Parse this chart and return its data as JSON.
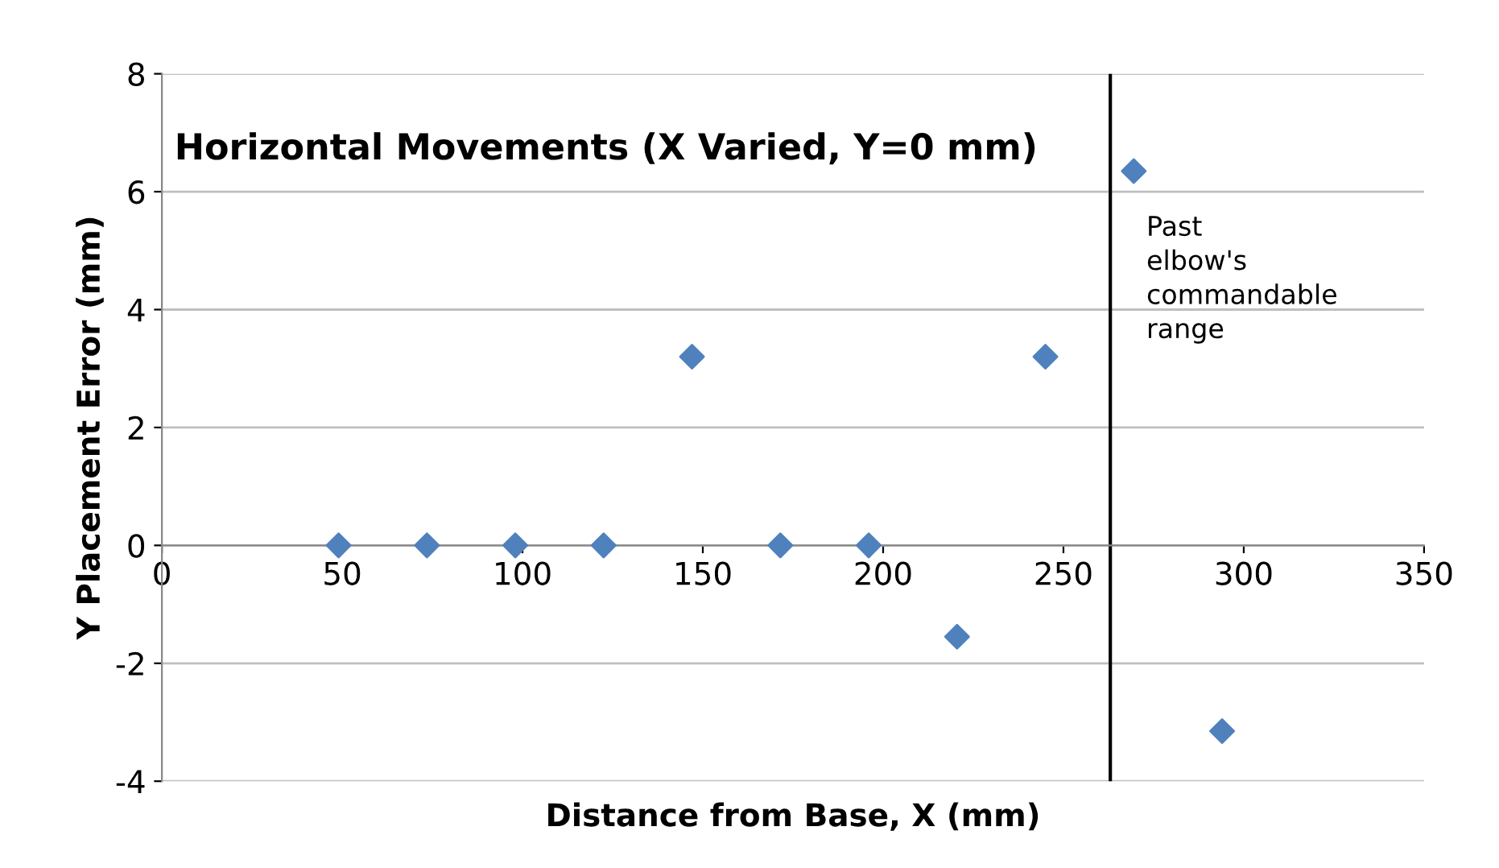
{
  "chart_data": {
    "type": "scatter",
    "title": "Horizontal Movements (X Varied, Y=0 mm)",
    "xlabel": "Distance from Base, X (mm)",
    "ylabel": "Y Placement Error (mm)",
    "x": [
      49,
      73.5,
      98,
      122.5,
      147,
      171.5,
      196,
      220.5,
      245,
      269.5,
      294
    ],
    "series": [
      {
        "color": "#4f81bd",
        "values": [
          0,
          0,
          0,
          0,
          3.2,
          0,
          0,
          -1.55,
          3.2,
          6.35,
          -3.15
        ]
      }
    ],
    "xlim": [
      0,
      350
    ],
    "xticks": [
      0,
      50,
      100,
      150,
      200,
      250,
      300,
      350
    ],
    "ylim": [
      -4,
      8
    ],
    "yticks": [
      -4,
      -2,
      0,
      2,
      4,
      6,
      8
    ],
    "grid": "y",
    "marker": "diamond",
    "legend": false,
    "ref_lines": [
      {
        "axis": "x",
        "value": 263,
        "label": "Past\nelbow's\ncommandable\nrange",
        "color": "#000000"
      }
    ]
  }
}
